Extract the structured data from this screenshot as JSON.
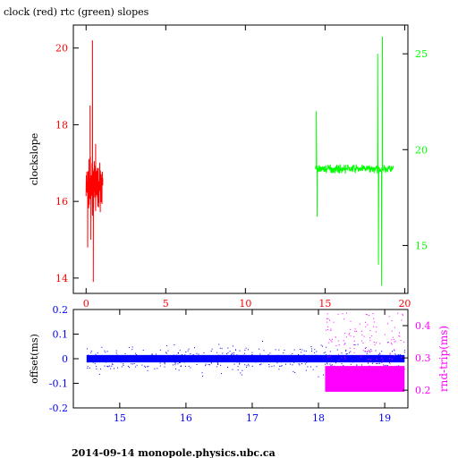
{
  "title": "clock (red) rtc (green) slopes",
  "footer": "2014-09-14 monopole.physics.ubc.ca",
  "colors": {
    "clock": "#ff0000",
    "rtc": "#00ff00",
    "offset": "#0000ff",
    "rndtrip": "#ff00ff",
    "frame": "#000000"
  },
  "chart_data": [
    {
      "type": "line",
      "title": "clock (red) rtc (green) slopes",
      "ylabel": "clockslope",
      "xlim": [
        -0.8,
        20.2
      ],
      "ylim": [
        13.6,
        20.6
      ],
      "xticks": [
        0,
        5,
        10,
        15,
        20
      ],
      "yticks": [
        14,
        16,
        18,
        20
      ],
      "y2lim": [
        12.5,
        26.5
      ],
      "y2ticks": [
        15,
        20,
        25
      ],
      "grid": false,
      "series": [
        {
          "name": "clock",
          "axis": "left",
          "x_range": [
            0.0,
            1.05
          ],
          "y_center": 16.4,
          "y_extent": [
            13.9,
            20.2
          ],
          "spikes": [
            [
              0.1,
              14.8
            ],
            [
              0.25,
              18.5
            ],
            [
              0.4,
              20.2
            ],
            [
              0.45,
              13.9
            ],
            [
              0.3,
              15.0
            ],
            [
              0.6,
              17.5
            ]
          ]
        },
        {
          "name": "rtc",
          "axis": "right",
          "x_range": [
            14.4,
            19.3
          ],
          "y_center": 19.0,
          "y_extent": [
            12.9,
            25.9
          ],
          "spikes": [
            [
              14.45,
              22.0
            ],
            [
              14.5,
              16.5
            ],
            [
              18.3,
              25.0
            ],
            [
              18.35,
              14.0
            ],
            [
              18.6,
              25.9
            ],
            [
              18.55,
              12.9
            ]
          ]
        }
      ]
    },
    {
      "type": "scatter",
      "ylabel": "offset(ms)",
      "y2label": "rnd-trip(ms)",
      "xlim": [
        14.3,
        19.35
      ],
      "ylim": [
        -0.2,
        0.2
      ],
      "xticks": [
        15,
        16,
        17,
        18,
        19
      ],
      "yticks": [
        -0.2,
        -0.1,
        0,
        0.1,
        0.2
      ],
      "y2lim": [
        0.145,
        0.45
      ],
      "y2ticks": [
        0.2,
        0.3,
        0.4
      ],
      "grid": false,
      "series": [
        {
          "name": "offset",
          "axis": "left",
          "x_range": [
            14.5,
            19.3
          ],
          "band": [
            -0.015,
            0.015
          ],
          "outlier_range": [
            -0.17,
            0.19
          ]
        },
        {
          "name": "rnd-trip",
          "axis": "right",
          "x_range": [
            18.1,
            19.3
          ],
          "band": [
            0.195,
            0.275
          ],
          "outlier_range": [
            0.22,
            0.44
          ]
        }
      ]
    }
  ]
}
